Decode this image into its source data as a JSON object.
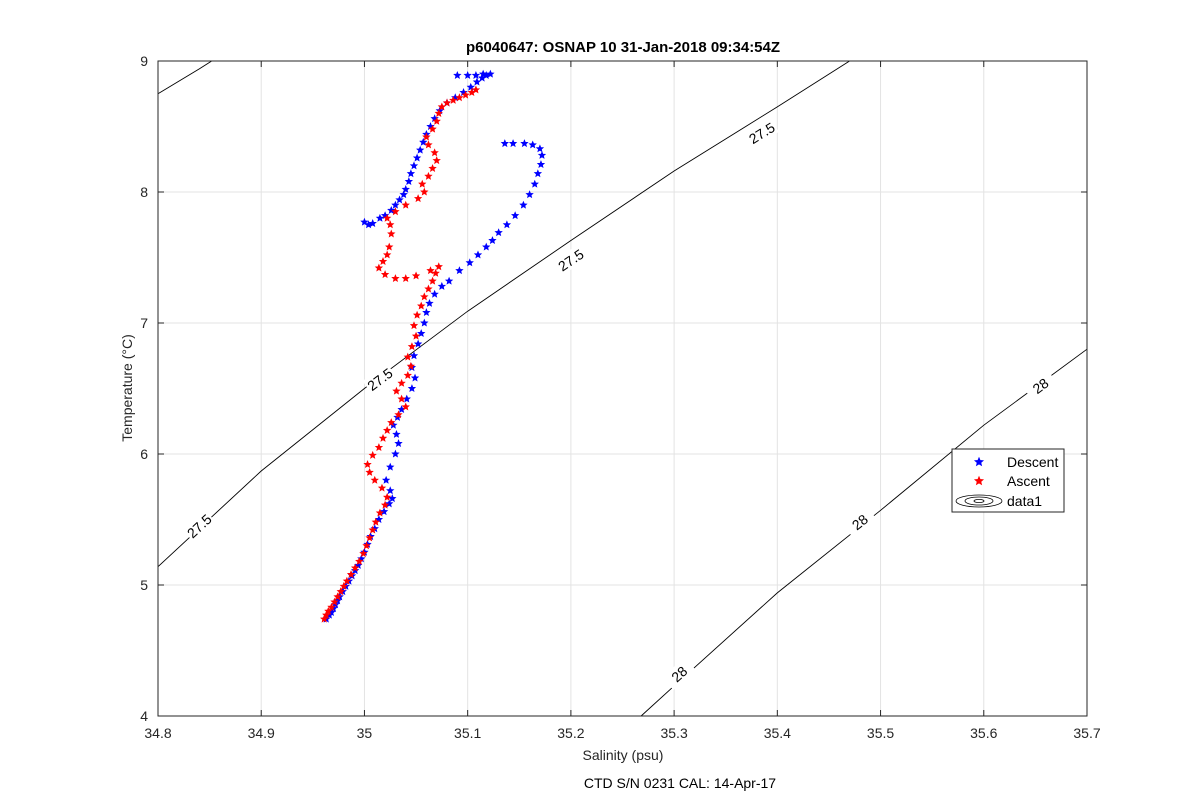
{
  "chart_data": {
    "type": "scatter",
    "title": "p6040647: OSNAP 10 31-Jan-2018 09:34:54Z",
    "xlabel": "Salinity (psu)",
    "ylabel": "Temperature (°C)",
    "footnote": "CTD S/N 0231  CAL: 14-Apr-17",
    "xlim": [
      34.8,
      35.7
    ],
    "ylim": [
      4,
      9
    ],
    "xticks": [
      "34.8",
      "34.9",
      "35",
      "35.1",
      "35.2",
      "35.3",
      "35.4",
      "35.5",
      "35.6",
      "35.7"
    ],
    "yticks": [
      "4",
      "5",
      "6",
      "7",
      "8",
      "9"
    ],
    "grid": true,
    "legend_position": "right",
    "colors": {
      "descent": "#0000ff",
      "ascent": "#ff0000",
      "contour": "#000000"
    },
    "series": [
      {
        "name": "Descent",
        "marker": "star",
        "points": [
          [
            34.963,
            4.74
          ],
          [
            34.966,
            4.77
          ],
          [
            34.968,
            4.79
          ],
          [
            34.97,
            4.82
          ],
          [
            34.972,
            4.85
          ],
          [
            34.974,
            4.88
          ],
          [
            34.976,
            4.91
          ],
          [
            34.979,
            4.95
          ],
          [
            34.982,
            4.99
          ],
          [
            34.985,
            5.03
          ],
          [
            34.988,
            5.07
          ],
          [
            34.991,
            5.11
          ],
          [
            34.994,
            5.15
          ],
          [
            34.997,
            5.2
          ],
          [
            35.0,
            5.25
          ],
          [
            35.003,
            5.31
          ],
          [
            35.006,
            5.37
          ],
          [
            35.01,
            5.43
          ],
          [
            35.014,
            5.5
          ],
          [
            35.019,
            5.56
          ],
          [
            35.024,
            5.62
          ],
          [
            35.027,
            5.66
          ],
          [
            35.025,
            5.72
          ],
          [
            35.021,
            5.8
          ],
          [
            35.025,
            5.9
          ],
          [
            35.03,
            6.0
          ],
          [
            35.033,
            6.08
          ],
          [
            35.031,
            6.15
          ],
          [
            35.028,
            6.22
          ],
          [
            35.032,
            6.28
          ],
          [
            35.036,
            6.34
          ],
          [
            35.041,
            6.42
          ],
          [
            35.046,
            6.5
          ],
          [
            35.049,
            6.58
          ],
          [
            35.046,
            6.66
          ],
          [
            35.048,
            6.75
          ],
          [
            35.052,
            6.84
          ],
          [
            35.055,
            6.92
          ],
          [
            35.058,
            7.0
          ],
          [
            35.06,
            7.08
          ],
          [
            35.063,
            7.15
          ],
          [
            35.068,
            7.22
          ],
          [
            35.075,
            7.28
          ],
          [
            35.082,
            7.32
          ],
          [
            35.092,
            7.4
          ],
          [
            35.102,
            7.46
          ],
          [
            35.11,
            7.52
          ],
          [
            35.118,
            7.58
          ],
          [
            35.124,
            7.63
          ],
          [
            35.13,
            7.69
          ],
          [
            35.138,
            7.75
          ],
          [
            35.146,
            7.82
          ],
          [
            35.154,
            7.9
          ],
          [
            35.16,
            7.98
          ],
          [
            35.165,
            8.06
          ],
          [
            35.168,
            8.14
          ],
          [
            35.171,
            8.21
          ],
          [
            35.172,
            8.28
          ],
          [
            35.17,
            8.33
          ],
          [
            35.163,
            8.36
          ],
          [
            35.155,
            8.37
          ],
          [
            35.144,
            8.37
          ],
          [
            35.136,
            8.37
          ],
          [
            35.0,
            7.77
          ],
          [
            35.004,
            7.75
          ],
          [
            35.008,
            7.76
          ],
          [
            35.015,
            7.8
          ],
          [
            35.02,
            7.82
          ],
          [
            35.026,
            7.86
          ],
          [
            35.03,
            7.9
          ],
          [
            35.034,
            7.94
          ],
          [
            35.038,
            7.98
          ],
          [
            35.04,
            8.02
          ],
          [
            35.043,
            8.08
          ],
          [
            35.045,
            8.14
          ],
          [
            35.048,
            8.2
          ],
          [
            35.051,
            8.26
          ],
          [
            35.054,
            8.32
          ],
          [
            35.057,
            8.38
          ],
          [
            35.06,
            8.44
          ],
          [
            35.064,
            8.5
          ],
          [
            35.068,
            8.56
          ],
          [
            35.073,
            8.62
          ],
          [
            35.08,
            8.68
          ],
          [
            35.088,
            8.72
          ],
          [
            35.096,
            8.76
          ],
          [
            35.103,
            8.8
          ],
          [
            35.109,
            8.84
          ],
          [
            35.114,
            8.87
          ],
          [
            35.118,
            8.89
          ],
          [
            35.122,
            8.9
          ],
          [
            35.115,
            8.9
          ],
          [
            35.108,
            8.89
          ],
          [
            35.1,
            8.89
          ],
          [
            35.09,
            8.89
          ]
        ]
      },
      {
        "name": "Ascent",
        "marker": "star",
        "points": [
          [
            34.961,
            4.74
          ],
          [
            34.963,
            4.77
          ],
          [
            34.965,
            4.8
          ],
          [
            34.968,
            4.83
          ],
          [
            34.971,
            4.87
          ],
          [
            34.974,
            4.91
          ],
          [
            34.977,
            4.95
          ],
          [
            34.98,
            4.99
          ],
          [
            34.983,
            5.03
          ],
          [
            34.987,
            5.08
          ],
          [
            34.991,
            5.13
          ],
          [
            34.995,
            5.18
          ],
          [
            34.999,
            5.24
          ],
          [
            35.002,
            5.3
          ],
          [
            35.005,
            5.36
          ],
          [
            35.008,
            5.42
          ],
          [
            35.011,
            5.48
          ],
          [
            35.015,
            5.55
          ],
          [
            35.02,
            5.61
          ],
          [
            35.022,
            5.67
          ],
          [
            35.017,
            5.74
          ],
          [
            35.01,
            5.8
          ],
          [
            35.005,
            5.86
          ],
          [
            35.003,
            5.92
          ],
          [
            35.008,
            5.99
          ],
          [
            35.014,
            6.05
          ],
          [
            35.018,
            6.12
          ],
          [
            35.022,
            6.18
          ],
          [
            35.026,
            6.24
          ],
          [
            35.033,
            6.3
          ],
          [
            35.04,
            6.36
          ],
          [
            35.036,
            6.42
          ],
          [
            35.031,
            6.48
          ],
          [
            35.036,
            6.54
          ],
          [
            35.042,
            6.6
          ],
          [
            35.045,
            6.67
          ],
          [
            35.042,
            6.74
          ],
          [
            35.046,
            6.82
          ],
          [
            35.05,
            6.9
          ],
          [
            35.048,
            6.98
          ],
          [
            35.051,
            7.06
          ],
          [
            35.055,
            7.13
          ],
          [
            35.058,
            7.2
          ],
          [
            35.062,
            7.26
          ],
          [
            35.066,
            7.32
          ],
          [
            35.069,
            7.38
          ],
          [
            35.072,
            7.43
          ],
          [
            35.064,
            7.4
          ],
          [
            35.05,
            7.36
          ],
          [
            35.04,
            7.34
          ],
          [
            35.03,
            7.34
          ],
          [
            35.02,
            7.37
          ],
          [
            35.014,
            7.42
          ],
          [
            35.018,
            7.47
          ],
          [
            35.022,
            7.52
          ],
          [
            35.024,
            7.58
          ],
          [
            35.026,
            7.68
          ],
          [
            35.025,
            7.75
          ],
          [
            35.022,
            7.8
          ],
          [
            35.03,
            7.85
          ],
          [
            35.04,
            7.9
          ],
          [
            35.052,
            7.95
          ],
          [
            35.058,
            8.0
          ],
          [
            35.056,
            8.06
          ],
          [
            35.062,
            8.12
          ],
          [
            35.066,
            8.18
          ],
          [
            35.07,
            8.24
          ],
          [
            35.068,
            8.3
          ],
          [
            35.062,
            8.36
          ],
          [
            35.06,
            8.42
          ],
          [
            35.066,
            8.48
          ],
          [
            35.07,
            8.54
          ],
          [
            35.072,
            8.6
          ],
          [
            35.075,
            8.65
          ],
          [
            35.08,
            8.68
          ],
          [
            35.086,
            8.7
          ],
          [
            35.092,
            8.72
          ],
          [
            35.098,
            8.74
          ],
          [
            35.104,
            8.76
          ],
          [
            35.108,
            8.78
          ]
        ]
      }
    ],
    "contours": [
      {
        "label": "27.5",
        "points": [
          [
            34.8,
            5.14
          ],
          [
            34.9,
            5.87
          ],
          [
            35.0,
            6.5
          ],
          [
            35.1,
            7.09
          ],
          [
            35.2,
            7.63
          ],
          [
            35.3,
            8.16
          ],
          [
            35.4,
            8.65
          ],
          [
            35.47,
            9.0
          ]
        ],
        "labels_at": [
          [
            34.84,
            5.45
          ],
          [
            35.015,
            6.57
          ],
          [
            35.2,
            7.48
          ],
          [
            35.385,
            8.45
          ]
        ]
      },
      {
        "label": "28",
        "points": [
          [
            35.268,
            4.0
          ],
          [
            35.3,
            4.23
          ],
          [
            35.4,
            4.94
          ],
          [
            35.5,
            5.57
          ],
          [
            35.6,
            6.22
          ],
          [
            35.7,
            6.8
          ]
        ],
        "labels_at": [
          [
            35.305,
            4.32
          ],
          [
            35.48,
            5.48
          ],
          [
            35.655,
            6.52
          ]
        ]
      },
      {
        "label": "",
        "points": [
          [
            34.8,
            8.75
          ],
          [
            34.84,
            8.94
          ],
          [
            34.852,
            9.0
          ]
        ],
        "labels_at": []
      }
    ],
    "legend": {
      "entries": [
        {
          "label": "Descent",
          "symbol": "star",
          "color": "#0000ff"
        },
        {
          "label": "Ascent",
          "symbol": "star",
          "color": "#ff0000"
        },
        {
          "label": "data1",
          "symbol": "contour",
          "color": "#000000"
        }
      ]
    }
  }
}
